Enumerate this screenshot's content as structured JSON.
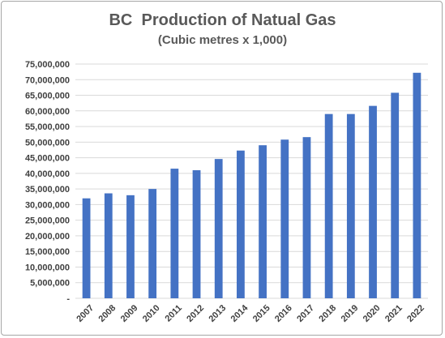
{
  "chart_data": {
    "type": "bar",
    "title": "BC  Production of Natual Gas",
    "subtitle": "(Cubic metres x 1,000)",
    "xlabel": "",
    "ylabel": "",
    "categories": [
      "2007",
      "2008",
      "2009",
      "2010",
      "2011",
      "2012",
      "2013",
      "2014",
      "2015",
      "2016",
      "2017",
      "2018",
      "2019",
      "2020",
      "2021",
      "2022"
    ],
    "values": [
      32000000,
      33600000,
      33000000,
      35000000,
      41500000,
      41000000,
      44600000,
      47300000,
      49000000,
      50800000,
      51600000,
      59000000,
      59000000,
      61600000,
      65800000,
      72200000
    ],
    "ylim": [
      0,
      75000000
    ],
    "yticks": [
      0,
      5000000,
      10000000,
      15000000,
      20000000,
      25000000,
      30000000,
      35000000,
      40000000,
      45000000,
      50000000,
      55000000,
      60000000,
      65000000,
      70000000,
      75000000
    ],
    "ytick_labels": [
      "-",
      "5,000,000",
      "10,000,000",
      "15,000,000",
      "20,000,000",
      "25,000,000",
      "30,000,000",
      "35,000,000",
      "40,000,000",
      "45,000,000",
      "50,000,000",
      "55,000,000",
      "60,000,000",
      "65,000,000",
      "70,000,000",
      "75,000,000"
    ],
    "grid": true,
    "legend": "none",
    "bar_color": "#4472c4",
    "grid_color": "#d9d9d9"
  }
}
